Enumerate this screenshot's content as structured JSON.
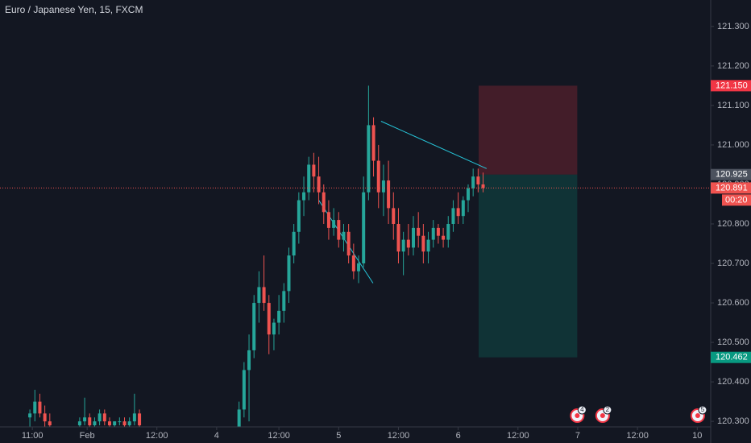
{
  "chart_data": {
    "type": "candlestick",
    "title": "Euro / Japanese Yen, 15, FXCM",
    "up_color": "#26a69a",
    "down_color": "#ef5350",
    "grid": false,
    "xlim": [
      0,
      142.7
    ],
    "xticks": [
      {
        "value": 6.5,
        "label": "11:00"
      },
      {
        "value": 17.5,
        "label": "Feb"
      },
      {
        "value": 31.5,
        "label": "12:00"
      },
      {
        "value": 43.5,
        "label": "4"
      },
      {
        "value": 56,
        "label": "12:00"
      },
      {
        "value": 68,
        "label": "5"
      },
      {
        "value": 80,
        "label": "12:00"
      },
      {
        "value": 92,
        "label": "6"
      },
      {
        "value": 104,
        "label": "12:00"
      },
      {
        "value": 116,
        "label": "7"
      },
      {
        "value": 128,
        "label": "12:00"
      },
      {
        "value": 140,
        "label": "10"
      }
    ],
    "ylim": [
      120.286,
      121.367
    ],
    "yticks": [
      {
        "value": 120.3,
        "label": "120.300"
      },
      {
        "value": 120.4,
        "label": "120.400"
      },
      {
        "value": 120.5,
        "label": "120.500"
      },
      {
        "value": 120.6,
        "label": "120.600"
      },
      {
        "value": 120.7,
        "label": "120.700"
      },
      {
        "value": 120.8,
        "label": "120.800"
      },
      {
        "value": 120.9,
        "label": "120.900"
      },
      {
        "value": 121.0,
        "label": "121.000"
      },
      {
        "value": 121.1,
        "label": "121.100"
      },
      {
        "value": 121.2,
        "label": "121.200"
      },
      {
        "value": 121.3,
        "label": "121.300"
      }
    ],
    "x": [
      6,
      7,
      8,
      9,
      10,
      16,
      17,
      18,
      19,
      20,
      21,
      22,
      23,
      24,
      25,
      26,
      27,
      28,
      48,
      49,
      50,
      51,
      52,
      53,
      54,
      55,
      56,
      57,
      58,
      59,
      60,
      61,
      62,
      63,
      64,
      65,
      66,
      67,
      68,
      69,
      70,
      71,
      72,
      73,
      74,
      75,
      76,
      77,
      78,
      79,
      80,
      81,
      82,
      83,
      84,
      85,
      86,
      87,
      88,
      89,
      90,
      91,
      92,
      93,
      94,
      95,
      96,
      97
    ],
    "ohlc": [
      [
        120.31,
        120.33,
        120.28,
        120.32
      ],
      [
        120.32,
        120.38,
        120.3,
        120.35
      ],
      [
        120.35,
        120.37,
        120.31,
        120.32
      ],
      [
        120.32,
        120.34,
        120.28,
        120.3
      ],
      [
        120.3,
        120.32,
        120.27,
        120.29
      ],
      [
        120.29,
        120.31,
        120.27,
        120.3
      ],
      [
        120.3,
        120.36,
        120.29,
        120.31
      ],
      [
        120.31,
        120.32,
        120.28,
        120.29
      ],
      [
        120.29,
        120.31,
        120.27,
        120.3
      ],
      [
        120.3,
        120.33,
        120.29,
        120.32
      ],
      [
        120.32,
        120.33,
        120.29,
        120.3
      ],
      [
        120.3,
        120.31,
        120.28,
        120.29
      ],
      [
        120.29,
        120.3,
        120.27,
        120.3
      ],
      [
        120.3,
        120.31,
        120.29,
        120.3
      ],
      [
        120.3,
        120.31,
        120.28,
        120.29
      ],
      [
        120.29,
        120.31,
        120.28,
        120.3
      ],
      [
        120.3,
        120.37,
        120.29,
        120.32
      ],
      [
        120.32,
        120.33,
        120.28,
        120.29
      ],
      [
        120.28,
        120.35,
        120.26,
        120.33
      ],
      [
        120.33,
        120.45,
        120.31,
        120.43
      ],
      [
        120.43,
        120.52,
        120.3,
        120.48
      ],
      [
        120.48,
        120.62,
        120.46,
        120.6
      ],
      [
        120.6,
        120.68,
        120.55,
        120.64
      ],
      [
        120.64,
        120.72,
        120.58,
        120.6
      ],
      [
        120.6,
        120.62,
        120.47,
        120.52
      ],
      [
        120.52,
        120.56,
        120.48,
        120.55
      ],
      [
        120.55,
        120.62,
        120.52,
        120.58
      ],
      [
        120.58,
        120.65,
        120.55,
        120.63
      ],
      [
        120.63,
        120.74,
        120.6,
        120.72
      ],
      [
        120.72,
        120.8,
        120.7,
        120.78
      ],
      [
        120.78,
        120.88,
        120.75,
        120.86
      ],
      [
        120.86,
        120.92,
        120.82,
        120.88
      ],
      [
        120.88,
        120.97,
        120.86,
        120.95
      ],
      [
        120.95,
        120.98,
        120.88,
        120.92
      ],
      [
        120.92,
        120.97,
        120.85,
        120.88
      ],
      [
        120.88,
        120.9,
        120.8,
        120.83
      ],
      [
        120.83,
        120.86,
        120.76,
        120.79
      ],
      [
        120.79,
        120.84,
        120.77,
        120.81
      ],
      [
        120.81,
        120.83,
        120.74,
        120.76
      ],
      [
        120.76,
        120.8,
        120.73,
        120.78
      ],
      [
        120.78,
        120.8,
        120.7,
        120.72
      ],
      [
        120.72,
        120.75,
        120.66,
        120.68
      ],
      [
        120.68,
        120.72,
        120.65,
        120.7
      ],
      [
        120.7,
        120.92,
        120.69,
        120.88
      ],
      [
        120.88,
        121.15,
        120.86,
        121.05
      ],
      [
        121.05,
        121.07,
        120.92,
        120.96
      ],
      [
        120.96,
        121.0,
        120.84,
        120.88
      ],
      [
        120.88,
        120.95,
        120.82,
        120.91
      ],
      [
        120.91,
        120.96,
        120.8,
        120.84
      ],
      [
        120.84,
        120.88,
        120.76,
        120.8
      ],
      [
        120.8,
        120.84,
        120.7,
        120.73
      ],
      [
        120.73,
        120.78,
        120.67,
        120.76
      ],
      [
        120.76,
        120.8,
        120.72,
        120.74
      ],
      [
        120.74,
        120.82,
        120.72,
        120.79
      ],
      [
        120.79,
        120.83,
        120.74,
        120.77
      ],
      [
        120.77,
        120.8,
        120.7,
        120.73
      ],
      [
        120.73,
        120.78,
        120.7,
        120.76
      ],
      [
        120.76,
        120.81,
        120.74,
        120.79
      ],
      [
        120.79,
        120.8,
        120.75,
        120.77
      ],
      [
        120.77,
        120.79,
        120.74,
        120.76
      ],
      [
        120.76,
        120.82,
        120.74,
        120.8
      ],
      [
        120.8,
        120.86,
        120.78,
        120.84
      ],
      [
        120.84,
        120.88,
        120.8,
        120.82
      ],
      [
        120.82,
        120.87,
        120.8,
        120.86
      ],
      [
        120.86,
        120.9,
        120.83,
        120.89
      ],
      [
        120.89,
        120.94,
        120.87,
        120.92
      ],
      [
        120.92,
        120.94,
        120.88,
        120.9
      ],
      [
        120.9,
        120.93,
        120.88,
        120.891
      ]
    ],
    "trendlines": [
      {
        "x": [
          64,
          74.9
        ],
        "y": [
          120.86,
          120.65
        ]
      },
      {
        "x": [
          76.5,
          97.7
        ],
        "y": [
          121.06,
          120.94
        ]
      }
    ],
    "position": {
      "x": [
        96.1,
        115.9
      ],
      "stop": {
        "value": 121.15,
        "label": "121.150"
      },
      "entry": {
        "value": 120.925,
        "label": "120.925"
      },
      "target": {
        "value": 120.462,
        "label": "120.462"
      }
    },
    "last_price": {
      "value": 120.891,
      "label": "120.891",
      "countdown": "00:20"
    },
    "events": [
      {
        "x": 115.9,
        "count": "4"
      },
      {
        "x": 121,
        "count": "2"
      },
      {
        "x": 140.1,
        "count": "5"
      }
    ]
  }
}
